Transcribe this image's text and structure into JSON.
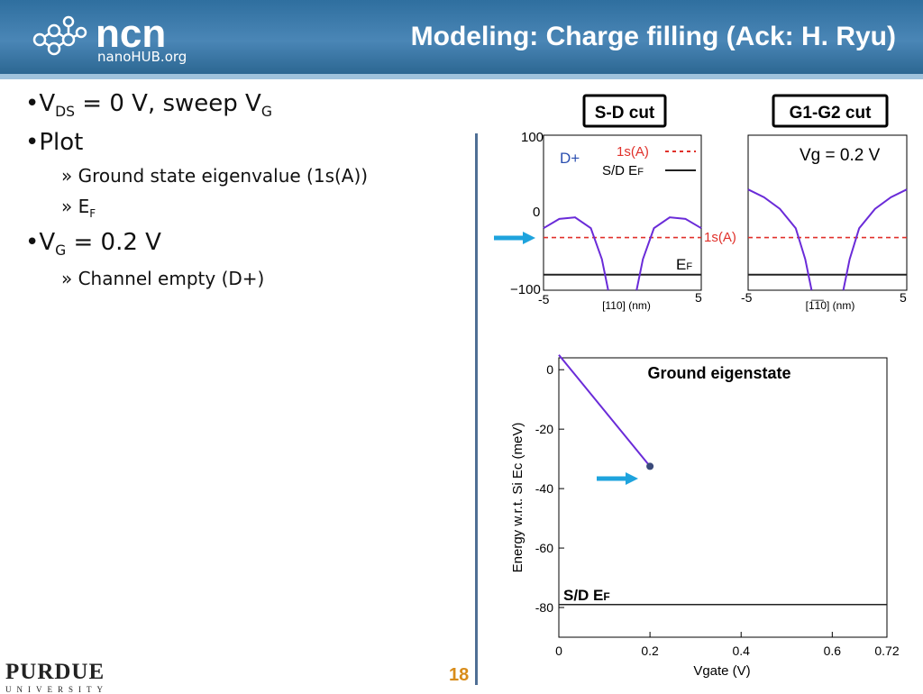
{
  "header": {
    "logo_text": "ncn",
    "logo_subtext": "nanoHUB.org",
    "title": "Modeling: Charge filling (Ack: H. Ryu)"
  },
  "bullets": {
    "b1_main": "V",
    "b1_sub": "DS",
    "b1_mid": " = 0 V, sweep V",
    "b1_sub2": "G",
    "b2": "Plot",
    "b2_1": "» Ground state eigenvalue (1s(A))",
    "b2_2_main": "» E",
    "b2_2_sub": "F",
    "b3_main": "V",
    "b3_sub": "G",
    "b3_rest": " = 0.2 V",
    "b3_1": "» Channel empty (D+)"
  },
  "footer": {
    "university_big": "PURDUE",
    "university_small": "UNIVERSITY",
    "page_number": "18"
  },
  "colors": {
    "potential_curve": "#6a2bd8",
    "level_1s": "#e0302a",
    "fermi_level": "#222222",
    "arrow": "#1ea3dd",
    "header_blue": "#3a77a8"
  },
  "chart_data": [
    {
      "type": "line",
      "title": "S-D cut",
      "xlabel": "[110] (nm)",
      "ylabel": "",
      "xlim": [
        -5,
        5
      ],
      "ylim": [
        -100,
        100
      ],
      "x_ticks": [
        "-5",
        "5"
      ],
      "y_ticks": [
        "100",
        "0",
        "−100"
      ],
      "annotations": [
        "D+",
        "1s(A)",
        "E",
        "F"
      ],
      "legend": [
        {
          "name": "1s(A)",
          "style": "dashed",
          "color": "#e0302a"
        },
        {
          "name": "S/D E",
          "sub": "F",
          "style": "solid",
          "color": "#222222"
        }
      ],
      "series": [
        {
          "name": "1s(A)",
          "x": [
            -5,
            5
          ],
          "y": [
            -32,
            -32
          ]
        },
        {
          "name": "S/D E_F",
          "x": [
            -5,
            5
          ],
          "y": [
            -80,
            -80
          ]
        }
      ],
      "potential_left": {
        "x": [
          -5,
          -4,
          -3,
          -2,
          -1.3,
          -0.9
        ],
        "y": [
          -20,
          -8,
          -6,
          -20,
          -60,
          -100
        ]
      },
      "potential_right": {
        "x": [
          0.9,
          1.3,
          2,
          3,
          4,
          5
        ],
        "y": [
          -100,
          -60,
          -20,
          -6,
          -8,
          -20
        ]
      }
    },
    {
      "type": "line",
      "title": "G1-G2 cut",
      "xlabel": "[1̅1̅0] (nm)",
      "ylabel": "",
      "xlim": [
        -5,
        5
      ],
      "ylim": [
        -100,
        100
      ],
      "x_ticks": [
        "-5",
        "5"
      ],
      "annotations": [
        "Vg = 0.2 V"
      ],
      "series": [
        {
          "name": "1s(A)",
          "x": [
            -5,
            5
          ],
          "y": [
            -32,
            -32
          ]
        },
        {
          "name": "S/D E_F",
          "x": [
            -5,
            5
          ],
          "y": [
            -80,
            -80
          ]
        }
      ],
      "potential_left": {
        "x": [
          -5,
          -4,
          -3,
          -2,
          -1.4,
          -1.0
        ],
        "y": [
          30,
          20,
          5,
          -20,
          -60,
          -100
        ]
      },
      "potential_right": {
        "x": [
          1.0,
          1.4,
          2,
          3,
          4,
          5
        ],
        "y": [
          -100,
          -60,
          -20,
          5,
          20,
          30
        ]
      }
    },
    {
      "type": "line",
      "title": "Ground eigenstate",
      "xlabel": "Vgate (V)",
      "ylabel": "Energy w.r.t. Si Ec (meV)",
      "xlim": [
        0,
        0.72
      ],
      "ylim": [
        -90,
        4
      ],
      "x_ticks": [
        "0",
        "0.2",
        "0.4",
        "0.6",
        "0.72"
      ],
      "y_ticks": [
        "0",
        "-20",
        "-40",
        "-60",
        "-80"
      ],
      "annotations": [
        "S/D E",
        "F"
      ],
      "series": [
        {
          "name": "Ground eigenstate",
          "x": [
            0,
            0.2
          ],
          "y": [
            5,
            -32.5
          ]
        },
        {
          "name": "S/D E_F",
          "x": [
            0,
            0.72
          ],
          "y": [
            -79,
            -79
          ]
        }
      ],
      "highlight_point": {
        "x": 0.2,
        "y": -32.5
      }
    }
  ]
}
